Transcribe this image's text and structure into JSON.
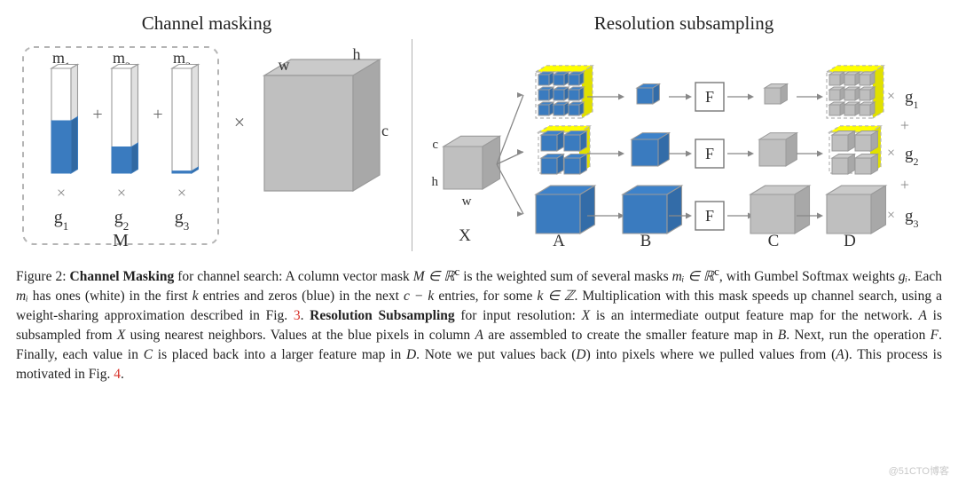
{
  "colors": {
    "fill_blue": "#3a7bbf",
    "fill_gray": "#bfbfbf",
    "fill_white": "#ffffff",
    "stroke": "#9a9a9a",
    "stroke_blue": "#3a7bbf",
    "text": "#333333",
    "dash": "#b5b5b5",
    "redlink": "#d8322a"
  },
  "left": {
    "title": "Channel masking",
    "bars": [
      {
        "label": "m",
        "sub": "1",
        "fill": 0.5,
        "g_label": "g",
        "g_sub": "1"
      },
      {
        "label": "m",
        "sub": "2",
        "fill": 0.25,
        "g_label": "g",
        "g_sub": "2"
      },
      {
        "label": "m",
        "sub": "3",
        "fill": 0.02,
        "g_label": "g",
        "g_sub": "3"
      }
    ],
    "plus": "+",
    "times": "×",
    "M_label": "M",
    "cube": {
      "w": "w",
      "h": "h",
      "c": "c"
    }
  },
  "right": {
    "title": "Resolution subsampling",
    "row_labels": {
      "g1": [
        "g",
        "1"
      ],
      "g2": [
        "g",
        "2"
      ],
      "g3": [
        "g",
        "3"
      ]
    },
    "between_rows_plus": "+",
    "F": "F",
    "arrow": "→",
    "times": "×",
    "X": {
      "label": "X",
      "c": "c",
      "h": "h",
      "w": "w"
    },
    "column_labels": [
      "A",
      "B",
      "C",
      "D"
    ],
    "cubes": {
      "A": [
        {
          "type": "dashed_grid_3",
          "fill": "blue"
        },
        {
          "type": "dashed_grid_2",
          "fill": "blue"
        },
        {
          "type": "solid_big",
          "fill": "blue"
        }
      ],
      "B": [
        {
          "type": "small_cube",
          "fill": "blue"
        },
        {
          "type": "med_cube",
          "fill": "blue"
        },
        {
          "type": "solid_big",
          "fill": "blue"
        }
      ],
      "C": [
        {
          "type": "small_cube",
          "fill": "gray"
        },
        {
          "type": "med_cube",
          "fill": "gray"
        },
        {
          "type": "solid_big",
          "fill": "gray"
        }
      ],
      "D": [
        {
          "type": "dashed_grid_3",
          "fill": "gray"
        },
        {
          "type": "dashed_grid_2",
          "fill": "gray"
        },
        {
          "type": "solid_big",
          "fill": "gray"
        }
      ]
    }
  },
  "caption": {
    "fig_label": "Figure 2:",
    "cm_label": "Channel Masking",
    "rs_label": "Resolution Subsampling",
    "part1_a": " for channel search: A column vector mask ",
    "M_in": "M ∈ ℝ",
    "sup_c": "c",
    "part1_b": " is the weighted sum of several masks ",
    "m_in": "mᵢ ∈ ℝ",
    "part1_c": ", with Gumbel Softmax weights ",
    "g_i": "gᵢ",
    "part1_d": ". Each ",
    "m_i": "mᵢ",
    "part1_e": " has ones (white) in the first ",
    "k": "k",
    "part1_f": " entries and zeros (blue) in the next ",
    "c_minus_k": "c − k",
    "part1_g": " entries, for some ",
    "k_in_Z": "k ∈ ℤ",
    "part1_h": ". Multiplication with this mask speeds up channel search, using a weight-sharing approximation described in Fig. ",
    "fig3": "3",
    "part2_a": ". ",
    "part2_b": " for input resolution: ",
    "X": "X",
    "part2_c": " is an intermediate output feature map for the network. ",
    "A": "A",
    "part2_d": " is subsampled from ",
    "part2_e": " using nearest neighbors. Values at the blue pixels in column ",
    "part2_f": " are assembled to create the smaller feature map in ",
    "B": "B",
    "part2_g": ". Next, run the operation ",
    "F": "F",
    "part2_h": ". Finally, each value in ",
    "C": "C",
    "part2_i": " is placed back into a larger feature map in ",
    "D": "D",
    "part2_j": ". Note we put values back (",
    "part2_k": ") into pixels where we pulled values from (",
    "part2_l": "). This process is motivated in Fig. ",
    "fig4": "4",
    "dot": "."
  },
  "watermark": "@51CTO博客"
}
